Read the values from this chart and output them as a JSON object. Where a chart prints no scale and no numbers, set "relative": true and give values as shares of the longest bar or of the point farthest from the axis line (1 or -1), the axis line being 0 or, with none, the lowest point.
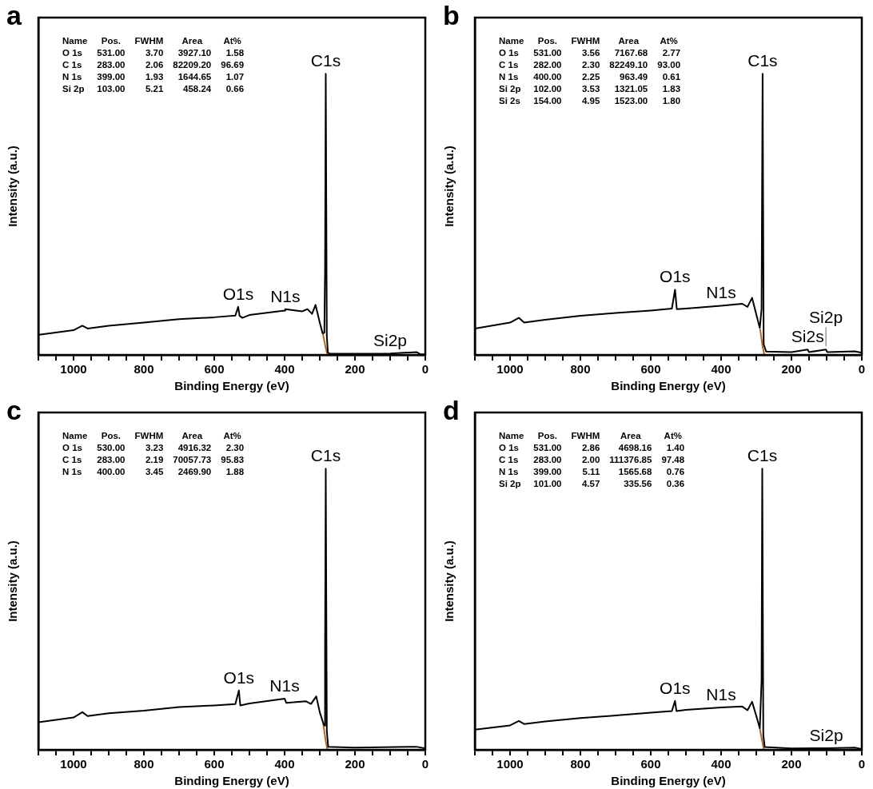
{
  "chart_data": [
    {
      "type": "line",
      "title": "a",
      "xlabel": "Binding Energy (eV)",
      "ylabel": "Intensity (a.u.)",
      "relative": true,
      "marker": "none",
      "xlim": [
        1100,
        0
      ],
      "xticks": [
        0,
        {
          "value": 50,
          "label": null
        },
        {
          "value": 100,
          "label": null
        },
        {
          "value": 150,
          "label": null
        },
        200,
        {
          "value": 250,
          "label": null
        },
        {
          "value": 300,
          "label": null
        },
        {
          "value": 350,
          "label": null
        },
        400,
        {
          "value": 450,
          "label": null
        },
        {
          "value": 500,
          "label": null
        },
        {
          "value": 550,
          "label": null
        },
        600,
        {
          "value": 650,
          "label": null
        },
        {
          "value": 700,
          "label": null
        },
        {
          "value": 750,
          "label": null
        },
        800,
        {
          "value": 850,
          "label": null
        },
        {
          "value": 900,
          "label": null
        },
        {
          "value": 950,
          "label": null
        },
        1000,
        {
          "value": 1050,
          "label": null
        },
        {
          "value": 1100,
          "label": null
        }
      ],
      "series": [
        {
          "color": "#000000",
          "x": [
            1098,
            1000,
            975,
            960,
            900,
            800,
            700,
            600,
            540,
            532,
            528,
            520,
            500,
            400,
            398,
            350,
            335,
            322,
            312,
            300,
            292,
            287,
            285,
            283,
            280,
            277,
            270,
            200,
            100,
            25,
            15,
            0
          ],
          "values": [
            0.072,
            0.088,
            0.104,
            0.094,
            0.104,
            0.115,
            0.127,
            0.134,
            0.14,
            0.171,
            0.139,
            0.132,
            0.142,
            0.158,
            0.163,
            0.155,
            0.163,
            0.146,
            0.178,
            0.115,
            0.077,
            0.079,
            0.307,
            1.0,
            0.067,
            0.008,
            0.004,
            0.004,
            0.005,
            0.01,
            0.003,
            0.002
          ]
        },
        {
          "color": "#b5651d",
          "x": [
            291,
            284,
            278
          ],
          "values": [
            0.075,
            0.03,
            0.0
          ]
        }
      ],
      "annotations": [
        "Name\tPos.\tFWHM\tArea\tAt%",
        "O 1s\t531.00\t3.70\t3927.10\t1.58",
        "C 1s\t283.00\t2.06\t82209.20\t96.69",
        "N 1s\t399.00\t1.93\t1644.65\t1.07",
        "Si 2p\t103.00\t5.21\t458.24\t0.66",
        {
          "text": "C1s",
          "x": 283,
          "y": 1.0
        },
        {
          "text": "O1s",
          "x": 532,
          "y": 0.171
        },
        {
          "text": "N1s",
          "x": 398,
          "y": 0.163
        },
        {
          "text": "Si2p",
          "x": 100,
          "y": 0.005
        }
      ]
    },
    {
      "type": "line",
      "title": "b",
      "xlabel": "Binding Energy (eV)",
      "ylabel": "Intensity (a.u.)",
      "relative": true,
      "marker": "none",
      "xlim": [
        1100,
        0
      ],
      "xticks": [
        0,
        {
          "value": 50,
          "label": null
        },
        {
          "value": 100,
          "label": null
        },
        {
          "value": 150,
          "label": null
        },
        200,
        {
          "value": 250,
          "label": null
        },
        {
          "value": 300,
          "label": null
        },
        {
          "value": 350,
          "label": null
        },
        400,
        {
          "value": 450,
          "label": null
        },
        {
          "value": 500,
          "label": null
        },
        {
          "value": 550,
          "label": null
        },
        600,
        {
          "value": 650,
          "label": null
        },
        {
          "value": 700,
          "label": null
        },
        {
          "value": 750,
          "label": null
        },
        800,
        {
          "value": 850,
          "label": null
        },
        {
          "value": 900,
          "label": null
        },
        {
          "value": 950,
          "label": null
        },
        1000,
        {
          "value": 1050,
          "label": null
        },
        {
          "value": 1100,
          "label": null
        }
      ],
      "series": [
        {
          "color": "#000000",
          "x": [
            1100,
            1000,
            975,
            960,
            900,
            800,
            700,
            600,
            540,
            531,
            526,
            500,
            400,
            340,
            325,
            312,
            300,
            290,
            285,
            282,
            279,
            272,
            200,
            154,
            150,
            102,
            98,
            20,
            0
          ],
          "values": [
            0.094,
            0.115,
            0.132,
            0.115,
            0.125,
            0.139,
            0.149,
            0.158,
            0.165,
            0.232,
            0.163,
            0.165,
            0.175,
            0.182,
            0.171,
            0.203,
            0.144,
            0.096,
            0.163,
            1.0,
            0.038,
            0.012,
            0.01,
            0.019,
            0.01,
            0.019,
            0.01,
            0.013,
            0.008
          ]
        },
        {
          "color": "#b5651d",
          "x": [
            289,
            282,
            277
          ],
          "values": [
            0.09,
            0.03,
            0.0
          ]
        }
      ],
      "annotations": [
        "Name\tPos.\tFWHM\tArea\tAt%",
        "O 1s\t531.00\t3.56\t7167.68\t2.77",
        "C 1s\t282.00\t2.30\t82249.10\t93.00",
        "N 1s\t400.00\t2.25\t963.49\t0.61",
        "Si 2p\t102.00\t3.53\t1321.05\t1.83",
        "Si 2s\t154.00\t4.95\t1523.00\t1.80",
        {
          "text": "C1s",
          "x": 282,
          "y": 1.0
        },
        {
          "text": "O1s",
          "x": 531,
          "y": 0.232
        },
        {
          "text": "N1s",
          "x": 400,
          "y": 0.175
        },
        {
          "text": "Si2s",
          "x": 154,
          "y": 0.019
        },
        {
          "text": "Si2p",
          "x": 102,
          "y": 0.019
        }
      ]
    },
    {
      "type": "line",
      "title": "c",
      "xlabel": "Binding Energy (eV)",
      "ylabel": "Intensity (a.u.)",
      "relative": true,
      "marker": "none",
      "xlim": [
        1100,
        0
      ],
      "xticks": [
        0,
        {
          "value": 50,
          "label": null
        },
        {
          "value": 100,
          "label": null
        },
        {
          "value": 150,
          "label": null
        },
        200,
        {
          "value": 250,
          "label": null
        },
        {
          "value": 300,
          "label": null
        },
        {
          "value": 350,
          "label": null
        },
        400,
        {
          "value": 450,
          "label": null
        },
        {
          "value": 500,
          "label": null
        },
        {
          "value": 550,
          "label": null
        },
        600,
        {
          "value": 650,
          "label": null
        },
        {
          "value": 700,
          "label": null
        },
        {
          "value": 750,
          "label": null
        },
        800,
        {
          "value": 850,
          "label": null
        },
        {
          "value": 900,
          "label": null
        },
        {
          "value": 950,
          "label": null
        },
        1000,
        {
          "value": 1050,
          "label": null
        },
        {
          "value": 1100,
          "label": null
        }
      ],
      "series": [
        {
          "color": "#000000",
          "x": [
            1100,
            1000,
            975,
            960,
            900,
            800,
            700,
            600,
            540,
            530,
            526,
            500,
            400,
            395,
            340,
            325,
            310,
            300,
            290,
            286,
            285,
            283,
            280,
            276,
            200,
            25,
            0
          ],
          "values": [
            0.098,
            0.115,
            0.134,
            0.12,
            0.13,
            0.139,
            0.152,
            0.158,
            0.163,
            0.211,
            0.158,
            0.165,
            0.182,
            0.167,
            0.173,
            0.163,
            0.19,
            0.134,
            0.094,
            0.086,
            0.355,
            1.0,
            0.067,
            0.011,
            0.008,
            0.011,
            0.005
          ]
        },
        {
          "color": "#b5651d",
          "x": [
            290,
            283,
            278
          ],
          "values": [
            0.09,
            0.03,
            0.0
          ]
        }
      ],
      "annotations": [
        "Name\tPos.\tFWHM\tArea\tAt%",
        "O 1s\t530.00\t3.23\t4916.32\t2.30",
        "C 1s\t283.00\t2.19\t70057.73\t95.83",
        "N 1s\t400.00\t3.45\t2469.90\t1.88",
        {
          "text": "C1s",
          "x": 283,
          "y": 1.0
        },
        {
          "text": "O1s",
          "x": 530,
          "y": 0.211
        },
        {
          "text": "N1s",
          "x": 400,
          "y": 0.182
        }
      ]
    },
    {
      "type": "line",
      "title": "d",
      "xlabel": "Binding Energy (eV)",
      "ylabel": "Intensity (a.u.)",
      "relative": true,
      "marker": "none",
      "xlim": [
        1100,
        0
      ],
      "xticks": [
        0,
        {
          "value": 50,
          "label": null
        },
        {
          "value": 100,
          "label": null
        },
        {
          "value": 150,
          "label": null
        },
        200,
        {
          "value": 250,
          "label": null
        },
        {
          "value": 300,
          "label": null
        },
        {
          "value": 350,
          "label": null
        },
        400,
        {
          "value": 450,
          "label": null
        },
        {
          "value": 500,
          "label": null
        },
        {
          "value": 550,
          "label": null
        },
        600,
        {
          "value": 650,
          "label": null
        },
        {
          "value": 700,
          "label": null
        },
        {
          "value": 750,
          "label": null
        },
        800,
        {
          "value": 850,
          "label": null
        },
        {
          "value": 900,
          "label": null
        },
        {
          "value": 950,
          "label": null
        },
        1000,
        {
          "value": 1050,
          "label": null
        },
        {
          "value": 1100,
          "label": null
        }
      ],
      "series": [
        {
          "color": "#000000",
          "x": [
            1100,
            1000,
            975,
            960,
            900,
            800,
            700,
            600,
            540,
            531,
            527,
            500,
            400,
            340,
            325,
            312,
            300,
            290,
            285,
            283,
            280,
            276,
            200,
            101,
            20,
            0
          ],
          "values": [
            0.072,
            0.087,
            0.103,
            0.092,
            0.101,
            0.113,
            0.122,
            0.132,
            0.138,
            0.174,
            0.138,
            0.142,
            0.151,
            0.154,
            0.141,
            0.171,
            0.121,
            0.077,
            0.246,
            1.0,
            0.053,
            0.01,
            0.005,
            0.006,
            0.008,
            0.003
          ]
        },
        {
          "color": "#b5651d",
          "x": [
            290,
            283,
            278
          ],
          "values": [
            0.075,
            0.03,
            0.0
          ]
        }
      ],
      "annotations": [
        "Name\tPos.\tFWHM\tArea\tAt%",
        "O 1s\t531.00\t2.86\t4698.16\t1.40",
        "C 1s\t283.00\t2.00\t111376.85\t97.48",
        "N 1s\t399.00\t5.11\t1565.68\t0.76",
        "Si 2p\t101.00\t4.57\t335.56\t0.36",
        {
          "text": "C1s",
          "x": 283,
          "y": 1.0
        },
        {
          "text": "O1s",
          "x": 531,
          "y": 0.174
        },
        {
          "text": "N1s",
          "x": 400,
          "y": 0.151
        },
        {
          "text": "Si2p",
          "x": 101,
          "y": 0.006
        }
      ]
    }
  ]
}
